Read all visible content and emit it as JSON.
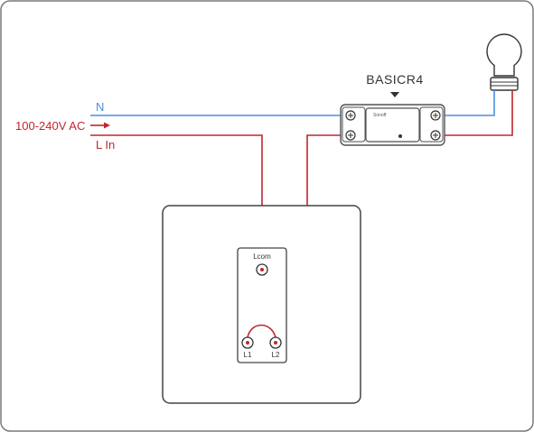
{
  "supply": {
    "voltage_label": "100-240V AC",
    "neutral_label": "N",
    "live_label": "L In"
  },
  "device": {
    "model": "BASICR4",
    "brand": "Sonoff"
  },
  "switch": {
    "common_label": "Lcom",
    "l1_label": "L1",
    "l2_label": "L2"
  },
  "colors": {
    "live": "#c0272d",
    "neutral": "#4a90e2",
    "frame": "#555555",
    "device_body": "#f4f4f4"
  }
}
